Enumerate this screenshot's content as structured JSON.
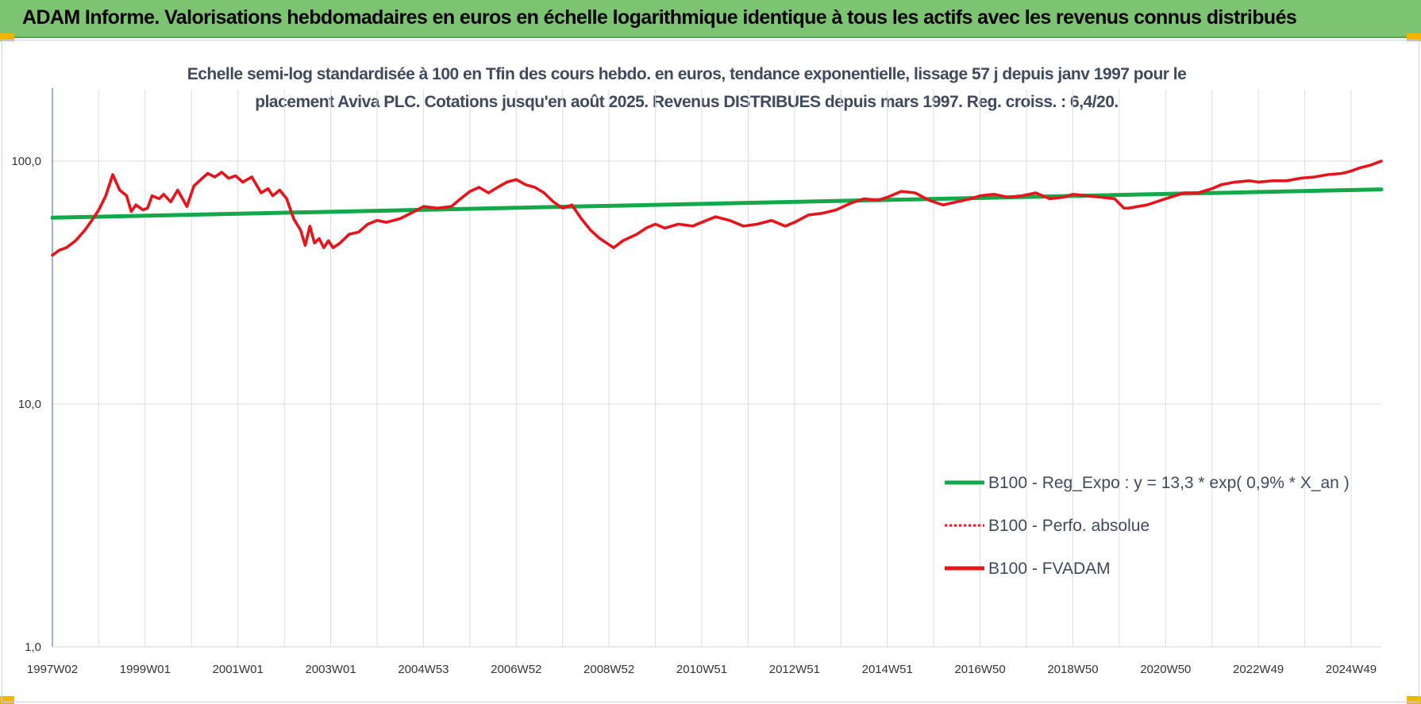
{
  "header": {
    "title": "ADAM Informe. Valorisations hebdomadaires en euros en échelle logarithmique identique à tous les actifs avec les revenus connus distribués"
  },
  "colors": {
    "banner": "#7dc472",
    "series_red": "#e8141c",
    "series_green": "#13a84a",
    "gridline": "#d9dde3",
    "axis": "#5b7fbf"
  },
  "chart_data": {
    "type": "line",
    "title_lines": [
      "Echelle semi-log standardisée à 100 en Tfin des cours hebdo. en euros, tendance exponentielle, lissage 57 j depuis janv 1997 pour le",
      "placement Aviva PLC. Cotations jusqu'en août 2025. Revenus DISTRIBUES depuis mars 1997. Reg. croiss. : 6,4/20."
    ],
    "y_scale": "log",
    "ylim": [
      1,
      100
    ],
    "y_ticks": [
      {
        "value": 100,
        "label": "100,0"
      },
      {
        "value": 10,
        "label": "10,0"
      },
      {
        "value": 1,
        "label": "1,0"
      }
    ],
    "xlim": [
      1997.0,
      2025.65
    ],
    "x_ticks": [
      {
        "x": 1997.0,
        "label": "1997W02"
      },
      {
        "x": 1999.0,
        "label": "1999W01"
      },
      {
        "x": 2001.0,
        "label": "2001W01"
      },
      {
        "x": 2003.0,
        "label": "2003W01"
      },
      {
        "x": 2005.0,
        "label": "2004W53"
      },
      {
        "x": 2007.0,
        "label": "2006W52"
      },
      {
        "x": 2009.0,
        "label": "2008W52"
      },
      {
        "x": 2011.0,
        "label": "2010W51"
      },
      {
        "x": 2013.0,
        "label": "2012W51"
      },
      {
        "x": 2015.0,
        "label": "2014W51"
      },
      {
        "x": 2017.0,
        "label": "2016W50"
      },
      {
        "x": 2019.0,
        "label": "2018W50"
      },
      {
        "x": 2021.0,
        "label": "2020W50"
      },
      {
        "x": 2023.0,
        "label": "2022W49"
      },
      {
        "x": 2025.0,
        "label": "2024W49"
      }
    ],
    "x_minor_gridlines": [
      1998,
      2000,
      2002,
      2004,
      2006,
      2008,
      2010,
      2012,
      2014,
      2016,
      2018,
      2020,
      2022,
      2024
    ],
    "grid": true,
    "legend_position": "bottom-right",
    "series": [
      {
        "name": "B100 - Reg_Expo : y = 13,3 * exp( 0,9% *  X_an )",
        "color": "#13a84a",
        "style": "solid",
        "x": [
          1997.0,
          2025.65
        ],
        "y": [
          58.5,
          76.5
        ]
      },
      {
        "name": "B100 - Perfo. absolue",
        "color": "#e8141c",
        "style": "dotted",
        "x": [],
        "y": []
      },
      {
        "name": "B100 - FVADAM",
        "color": "#e8141c",
        "style": "solid",
        "x": [
          1997.0,
          1997.15,
          1997.3,
          1997.5,
          1997.7,
          1997.85,
          1998.0,
          1998.15,
          1998.3,
          1998.45,
          1998.6,
          1998.7,
          1998.8,
          1998.95,
          1999.05,
          1999.15,
          1999.3,
          1999.4,
          1999.55,
          1999.7,
          1999.9,
          2000.05,
          2000.2,
          2000.35,
          2000.5,
          2000.65,
          2000.8,
          2000.95,
          2001.1,
          2001.3,
          2001.5,
          2001.65,
          2001.75,
          2001.9,
          2002.05,
          2002.2,
          2002.35,
          2002.45,
          2002.55,
          2002.65,
          2002.75,
          2002.85,
          2002.95,
          2003.05,
          2003.2,
          2003.4,
          2003.6,
          2003.8,
          2004.0,
          2004.2,
          2004.5,
          2004.8,
          2005.0,
          2005.3,
          2005.6,
          2005.8,
          2006.0,
          2006.2,
          2006.4,
          2006.6,
          2006.8,
          2007.0,
          2007.2,
          2007.4,
          2007.6,
          2007.8,
          2008.0,
          2008.2,
          2008.4,
          2008.6,
          2008.8,
          2008.95,
          2009.1,
          2009.3,
          2009.6,
          2009.8,
          2010.0,
          2010.2,
          2010.5,
          2010.8,
          2011.0,
          2011.3,
          2011.6,
          2011.9,
          2012.2,
          2012.5,
          2012.8,
          2013.0,
          2013.3,
          2013.6,
          2013.9,
          2014.2,
          2014.5,
          2014.8,
          2015.0,
          2015.3,
          2015.6,
          2015.9,
          2016.2,
          2016.5,
          2016.8,
          2017.0,
          2017.3,
          2017.6,
          2017.9,
          2018.2,
          2018.5,
          2018.8,
          2019.0,
          2019.3,
          2019.6,
          2019.9,
          2020.1,
          2020.2,
          2020.4,
          2020.6,
          2020.9,
          2021.1,
          2021.4,
          2021.7,
          2022.0,
          2022.2,
          2022.5,
          2022.8,
          2023.0,
          2023.3,
          2023.6,
          2023.9,
          2024.2,
          2024.5,
          2024.8,
          2025.0,
          2025.2,
          2025.4,
          2025.65
        ],
        "y": [
          41,
          43,
          44,
          47,
          52,
          57,
          63,
          72,
          88,
          76,
          72,
          62,
          66,
          63,
          64,
          72,
          70,
          73,
          68,
          76,
          65,
          79,
          84,
          89,
          86,
          90,
          85,
          87,
          82,
          86,
          74,
          77,
          72,
          76,
          70,
          58,
          52,
          45,
          54,
          46,
          48,
          44,
          47,
          44,
          46,
          50,
          51,
          55,
          57,
          56,
          58,
          62,
          65,
          64,
          65,
          70,
          75,
          78,
          74,
          78,
          82,
          84,
          80,
          78,
          74,
          68,
          64,
          66,
          58,
          52,
          48,
          46,
          44,
          47,
          50,
          53,
          55,
          53,
          55,
          54,
          56,
          59,
          57,
          54,
          55,
          57,
          54,
          56,
          60,
          61,
          63,
          67,
          70,
          69,
          71,
          75,
          74,
          69,
          66,
          68,
          70,
          72,
          73,
          71,
          72,
          74,
          70,
          71,
          73,
          72,
          71,
          70,
          64,
          64,
          65,
          66,
          69,
          71,
          74,
          74,
          77,
          80,
          82,
          83,
          82,
          83,
          83,
          85,
          86,
          88,
          89,
          91,
          94,
          96,
          100
        ]
      }
    ]
  }
}
